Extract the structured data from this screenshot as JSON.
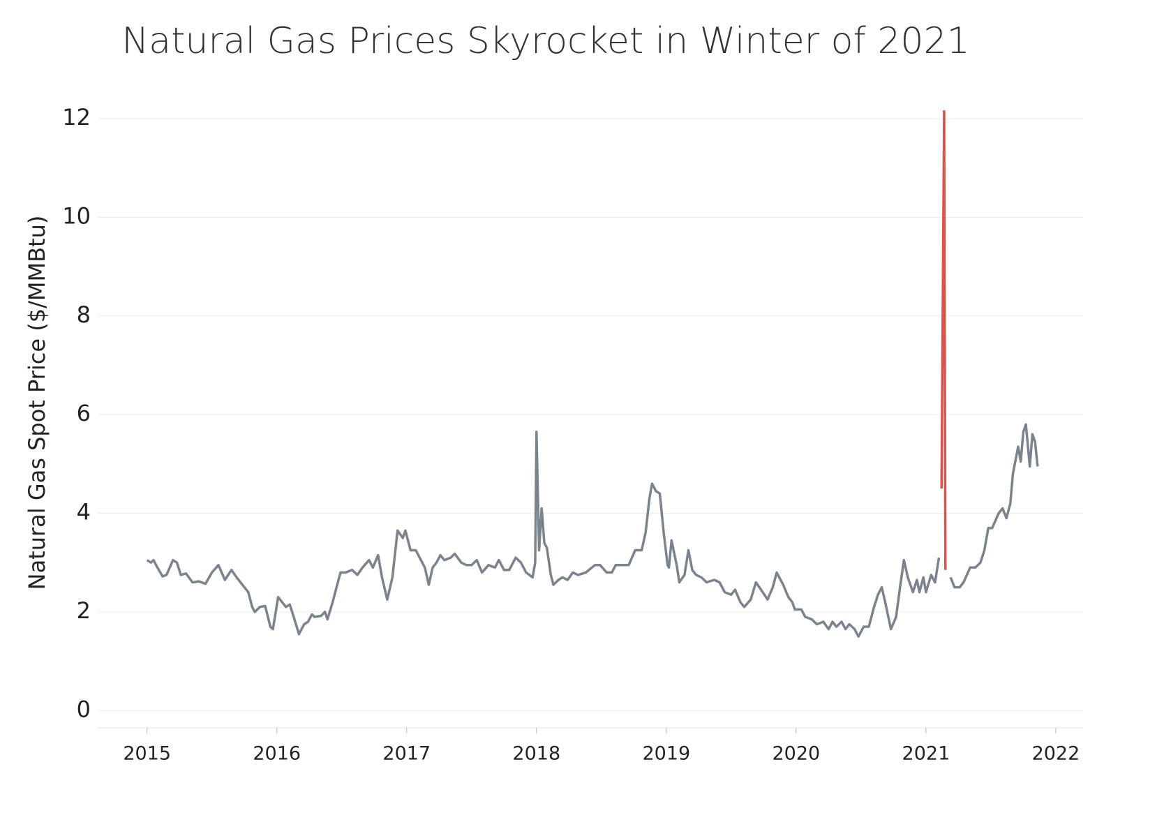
{
  "chart_data": {
    "type": "line",
    "title": "Natural Gas Prices Skyrocket in Winter of 2021",
    "y_label": "Natural Gas Spot Price ($/MMBtu)",
    "xlim": [
      2014.62,
      2022.21
    ],
    "xticks": [
      2015,
      2016,
      2017,
      2018,
      2019,
      2020,
      2021,
      2022
    ],
    "ylim": [
      -0.35,
      12.85
    ],
    "yticks": [
      0,
      2,
      4,
      6,
      8,
      10,
      12
    ],
    "grid": true,
    "series": [
      {
        "color": "#7b838e",
        "x": [
          2015.0,
          2015.03,
          2015.05,
          2015.08,
          2015.12,
          2015.15,
          2015.2,
          2015.23,
          2015.26,
          2015.3,
          2015.35,
          2015.4,
          2015.45,
          2015.5,
          2015.55,
          2015.6,
          2015.65,
          2015.69,
          2015.75,
          2015.78,
          2015.81,
          2015.83,
          2015.87,
          2015.91,
          2015.95,
          2015.97,
          2016.01,
          2016.04,
          2016.07,
          2016.1,
          2016.13,
          2016.17,
          2016.21,
          2016.24,
          2016.27,
          2016.29,
          2016.34,
          2016.37,
          2016.39,
          2016.43,
          2016.46,
          2016.49,
          2016.53,
          2016.58,
          2016.62,
          2016.66,
          2016.71,
          2016.74,
          2016.78,
          2016.81,
          2016.85,
          2016.89,
          2016.93,
          2016.97,
          2016.99,
          2017.03,
          2017.07,
          2017.11,
          2017.14,
          2017.17,
          2017.2,
          2017.23,
          2017.26,
          2017.29,
          2017.34,
          2017.37,
          2017.42,
          2017.46,
          2017.5,
          2017.54,
          2017.58,
          2017.63,
          2017.68,
          2017.71,
          2017.75,
          2017.79,
          2017.84,
          2017.88,
          2017.92,
          2017.97,
          2017.99,
          2018.0,
          2018.02,
          2018.04,
          2018.06,
          2018.08,
          2018.11,
          2018.13,
          2018.17,
          2018.2,
          2018.24,
          2018.28,
          2018.32,
          2018.38,
          2018.45,
          2018.49,
          2018.54,
          2018.58,
          2018.61,
          2018.67,
          2018.71,
          2018.76,
          2018.81,
          2018.84,
          2018.87,
          2018.89,
          2018.92,
          2018.95,
          2018.98,
          2019.01,
          2019.02,
          2019.04,
          2019.08,
          2019.1,
          2019.14,
          2019.17,
          2019.2,
          2019.23,
          2019.27,
          2019.31,
          2019.37,
          2019.41,
          2019.45,
          2019.5,
          2019.53,
          2019.57,
          2019.6,
          2019.65,
          2019.69,
          2019.73,
          2019.78,
          2019.82,
          2019.85,
          2019.9,
          2019.94,
          2019.97,
          2019.99,
          2020.04,
          2020.07,
          2020.12,
          2020.16,
          2020.21,
          2020.25,
          2020.28,
          2020.31,
          2020.35,
          2020.38,
          2020.41,
          2020.45,
          2020.48,
          2020.52,
          2020.56,
          2020.6,
          2020.63,
          2020.66,
          2020.69,
          2020.73,
          2020.77,
          2020.8,
          2020.83,
          2020.86,
          2020.9,
          2020.93,
          2020.95,
          2020.98,
          2021.0,
          2021.04,
          2021.07,
          2021.1,
          2021.14,
          2021.19,
          2021.22,
          2021.26,
          2021.29,
          2021.34,
          2021.38,
          2021.42,
          2021.45,
          2021.48,
          2021.51,
          2021.56,
          2021.59,
          2021.62,
          2021.65,
          2021.67,
          2021.71,
          2021.73,
          2021.75,
          2021.77,
          2021.8,
          2021.82,
          2021.84,
          2021.86
        ],
        "values": [
          3.05,
          3.0,
          3.05,
          2.9,
          2.72,
          2.75,
          3.05,
          3.0,
          2.75,
          2.78,
          2.6,
          2.62,
          2.57,
          2.8,
          2.95,
          2.65,
          2.85,
          2.7,
          2.5,
          2.4,
          2.1,
          2.0,
          2.1,
          2.12,
          1.7,
          1.65,
          2.3,
          2.2,
          2.1,
          2.15,
          1.9,
          1.55,
          1.75,
          1.8,
          1.95,
          1.9,
          1.92,
          2.0,
          1.85,
          2.2,
          2.5,
          2.8,
          2.8,
          2.85,
          2.75,
          2.9,
          3.05,
          2.9,
          3.15,
          2.7,
          2.25,
          2.7,
          3.65,
          3.5,
          3.65,
          3.25,
          3.25,
          3.05,
          2.9,
          2.55,
          2.9,
          3.0,
          3.15,
          3.05,
          3.1,
          3.18,
          3.0,
          2.95,
          2.95,
          3.05,
          2.8,
          2.95,
          2.9,
          3.05,
          2.85,
          2.85,
          3.1,
          3.0,
          2.8,
          2.7,
          3.0,
          5.65,
          3.25,
          4.1,
          3.4,
          3.3,
          2.75,
          2.55,
          2.65,
          2.7,
          2.65,
          2.8,
          2.75,
          2.8,
          2.95,
          2.95,
          2.8,
          2.8,
          2.95,
          2.95,
          2.95,
          3.25,
          3.25,
          3.6,
          4.3,
          4.6,
          4.45,
          4.4,
          3.6,
          2.95,
          2.9,
          3.45,
          2.95,
          2.6,
          2.75,
          3.25,
          2.85,
          2.75,
          2.7,
          2.6,
          2.65,
          2.6,
          2.4,
          2.35,
          2.45,
          2.2,
          2.1,
          2.25,
          2.6,
          2.45,
          2.25,
          2.5,
          2.8,
          2.55,
          2.3,
          2.2,
          2.05,
          2.05,
          1.9,
          1.85,
          1.75,
          1.8,
          1.65,
          1.8,
          1.7,
          1.8,
          1.65,
          1.75,
          1.65,
          1.5,
          1.7,
          1.7,
          2.1,
          2.35,
          2.5,
          2.15,
          1.65,
          1.9,
          2.5,
          3.05,
          2.7,
          2.4,
          2.65,
          2.4,
          2.7,
          2.4,
          2.75,
          2.6,
          3.1,
          null,
          2.7,
          2.5,
          2.5,
          2.6,
          2.9,
          2.9,
          3.0,
          3.25,
          3.7,
          3.7,
          4.0,
          4.1,
          3.9,
          4.2,
          4.8,
          5.35,
          5.05,
          5.65,
          5.8,
          4.95,
          5.6,
          5.45,
          4.95
        ]
      },
      {
        "color": "#d9534f",
        "x": [
          2021.12,
          2021.14,
          2021.15
        ],
        "values": [
          4.5,
          12.15,
          2.85
        ]
      }
    ]
  }
}
